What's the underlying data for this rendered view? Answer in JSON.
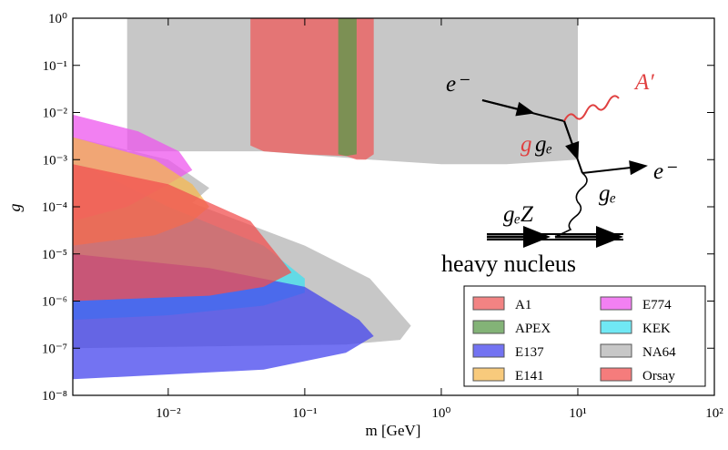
{
  "chart_data": {
    "type": "area",
    "xlabel": "m [GeV]",
    "ylabel": "g",
    "xscale": "log",
    "yscale": "log",
    "xlim": [
      0.002,
      100
    ],
    "ylim": [
      1e-08,
      1
    ],
    "xticks": [
      {
        "value": 0.01,
        "label": "10⁻²"
      },
      {
        "value": 0.1,
        "label": "10⁻¹"
      },
      {
        "value": 1,
        "label": "10⁰"
      },
      {
        "value": 10,
        "label": "10¹"
      },
      {
        "value": 100,
        "label": "10²"
      }
    ],
    "yticks": [
      {
        "value": 1e-08,
        "label": "10⁻⁸"
      },
      {
        "value": 1e-07,
        "label": "10⁻⁷"
      },
      {
        "value": 1e-06,
        "label": "10⁻⁶"
      },
      {
        "value": 1e-05,
        "label": "10⁻⁵"
      },
      {
        "value": 0.0001,
        "label": "10⁻⁴"
      },
      {
        "value": 0.001,
        "label": "10⁻³"
      },
      {
        "value": 0.01,
        "label": "10⁻²"
      },
      {
        "value": 0.1,
        "label": "10⁻¹"
      },
      {
        "value": 1,
        "label": "10⁰"
      }
    ],
    "alpha": 0.75,
    "legend": "lower right",
    "annotations": [
      "e⁻",
      "A′",
      "g",
      "gₑ",
      "e⁻",
      "gₑ",
      "gₑZ",
      "heavy nucleus"
    ],
    "series": [
      {
        "name": "NA64",
        "color": "#b4b4b4",
        "x": [
          0.005,
          0.005,
          0.05,
          0.3,
          1,
          3,
          10,
          10,
          null,
          0.002,
          0.01,
          0.02,
          0.015,
          0.1,
          0.3,
          0.6,
          0.5,
          0.2,
          0.002
        ],
        "y": [
          1,
          0.0015,
          0.0015,
          0.001,
          0.0008,
          0.0008,
          0.001,
          1,
          null,
          0.003,
          0.001,
          0.00025,
          0.00012,
          1.5e-05,
          3e-06,
          3e-07,
          1.5e-07,
          1.2e-07,
          1e-07
        ]
      },
      {
        "name": "KEK",
        "color": "#40e0f0",
        "x": [
          0.002,
          0.01,
          0.05,
          0.1,
          0.1,
          0.05,
          0.01,
          0.002
        ],
        "y": [
          0.001,
          0.0001,
          1.5e-05,
          3e-06,
          1.5e-06,
          8e-07,
          5e-07,
          4e-07
        ]
      },
      {
        "name": "E137",
        "color": "#4444ee",
        "x": [
          0.002,
          0.02,
          0.1,
          0.25,
          0.32,
          0.2,
          0.05,
          0.002
        ],
        "y": [
          1e-05,
          5e-06,
          2e-06,
          4e-07,
          1.8e-07,
          8e-08,
          3.5e-08,
          2.2e-08
        ]
      },
      {
        "name": "E774",
        "color": "#ee55ee",
        "x": [
          0.002,
          0.006,
          0.012,
          0.015,
          0.01,
          0.005,
          0.002
        ],
        "y": [
          0.009,
          0.004,
          0.0015,
          0.0006,
          0.0003,
          0.0001,
          5e-05
        ]
      },
      {
        "name": "E141",
        "color": "#f5b850",
        "x": [
          0.002,
          0.008,
          0.015,
          0.02,
          0.015,
          0.008,
          0.002
        ],
        "y": [
          0.003,
          0.001,
          0.0003,
          0.0001,
          5e-05,
          2.5e-05,
          1.5e-05
        ]
      },
      {
        "name": "Orsay",
        "color": "#f25050",
        "x": [
          0.002,
          0.01,
          0.04,
          0.08,
          0.05,
          0.02,
          0.002
        ],
        "y": [
          0.0008,
          0.0003,
          5e-05,
          4e-06,
          2e-06,
          1.3e-06,
          1e-06
        ]
      },
      {
        "name": "A1",
        "color": "#ee5a5a",
        "x": [
          0.04,
          0.04,
          0.05,
          0.1,
          0.2,
          0.24,
          0.28,
          0.32,
          0.32
        ],
        "y": [
          1,
          0.002,
          0.0015,
          0.0013,
          0.0012,
          0.001,
          0.001,
          0.0013,
          1
        ]
      },
      {
        "name": "APEX",
        "color": "#5a9a4a",
        "x": [
          0.176,
          0.176,
          0.2,
          0.24,
          0.24
        ],
        "y": [
          1,
          0.0013,
          0.0012,
          0.0013,
          1
        ]
      }
    ],
    "legend_order": [
      6,
      7,
      2,
      4,
      3,
      1,
      0,
      5
    ]
  }
}
